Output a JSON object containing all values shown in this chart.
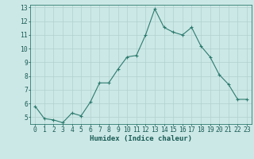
{
  "x": [
    0,
    1,
    2,
    3,
    4,
    5,
    6,
    7,
    8,
    9,
    10,
    11,
    12,
    13,
    14,
    15,
    16,
    17,
    18,
    19,
    20,
    21,
    22,
    23
  ],
  "y": [
    5.8,
    4.9,
    4.8,
    4.6,
    5.3,
    5.1,
    6.1,
    7.5,
    7.5,
    8.5,
    9.4,
    9.5,
    11.0,
    12.9,
    11.55,
    11.2,
    11.0,
    11.55,
    10.2,
    9.4,
    8.1,
    7.4,
    6.3,
    6.3
  ],
  "xlabel": "Humidex (Indice chaleur)",
  "xlim": [
    -0.5,
    23.5
  ],
  "ylim": [
    4.5,
    13.2
  ],
  "yticks": [
    5,
    6,
    7,
    8,
    9,
    10,
    11,
    12,
    13
  ],
  "xticks": [
    0,
    1,
    2,
    3,
    4,
    5,
    6,
    7,
    8,
    9,
    10,
    11,
    12,
    13,
    14,
    15,
    16,
    17,
    18,
    19,
    20,
    21,
    22,
    23
  ],
  "line_color": "#2d7b6e",
  "marker": "+",
  "bg_color": "#cce8e6",
  "grid_color": "#b0d0ce",
  "axis_color": "#2d7b6e",
  "label_color": "#1a5c55",
  "tick_color": "#1a5c55",
  "font_size_xlabel": 6.5,
  "font_size_ticks": 5.8,
  "linewidth": 0.8,
  "markersize": 3.0
}
